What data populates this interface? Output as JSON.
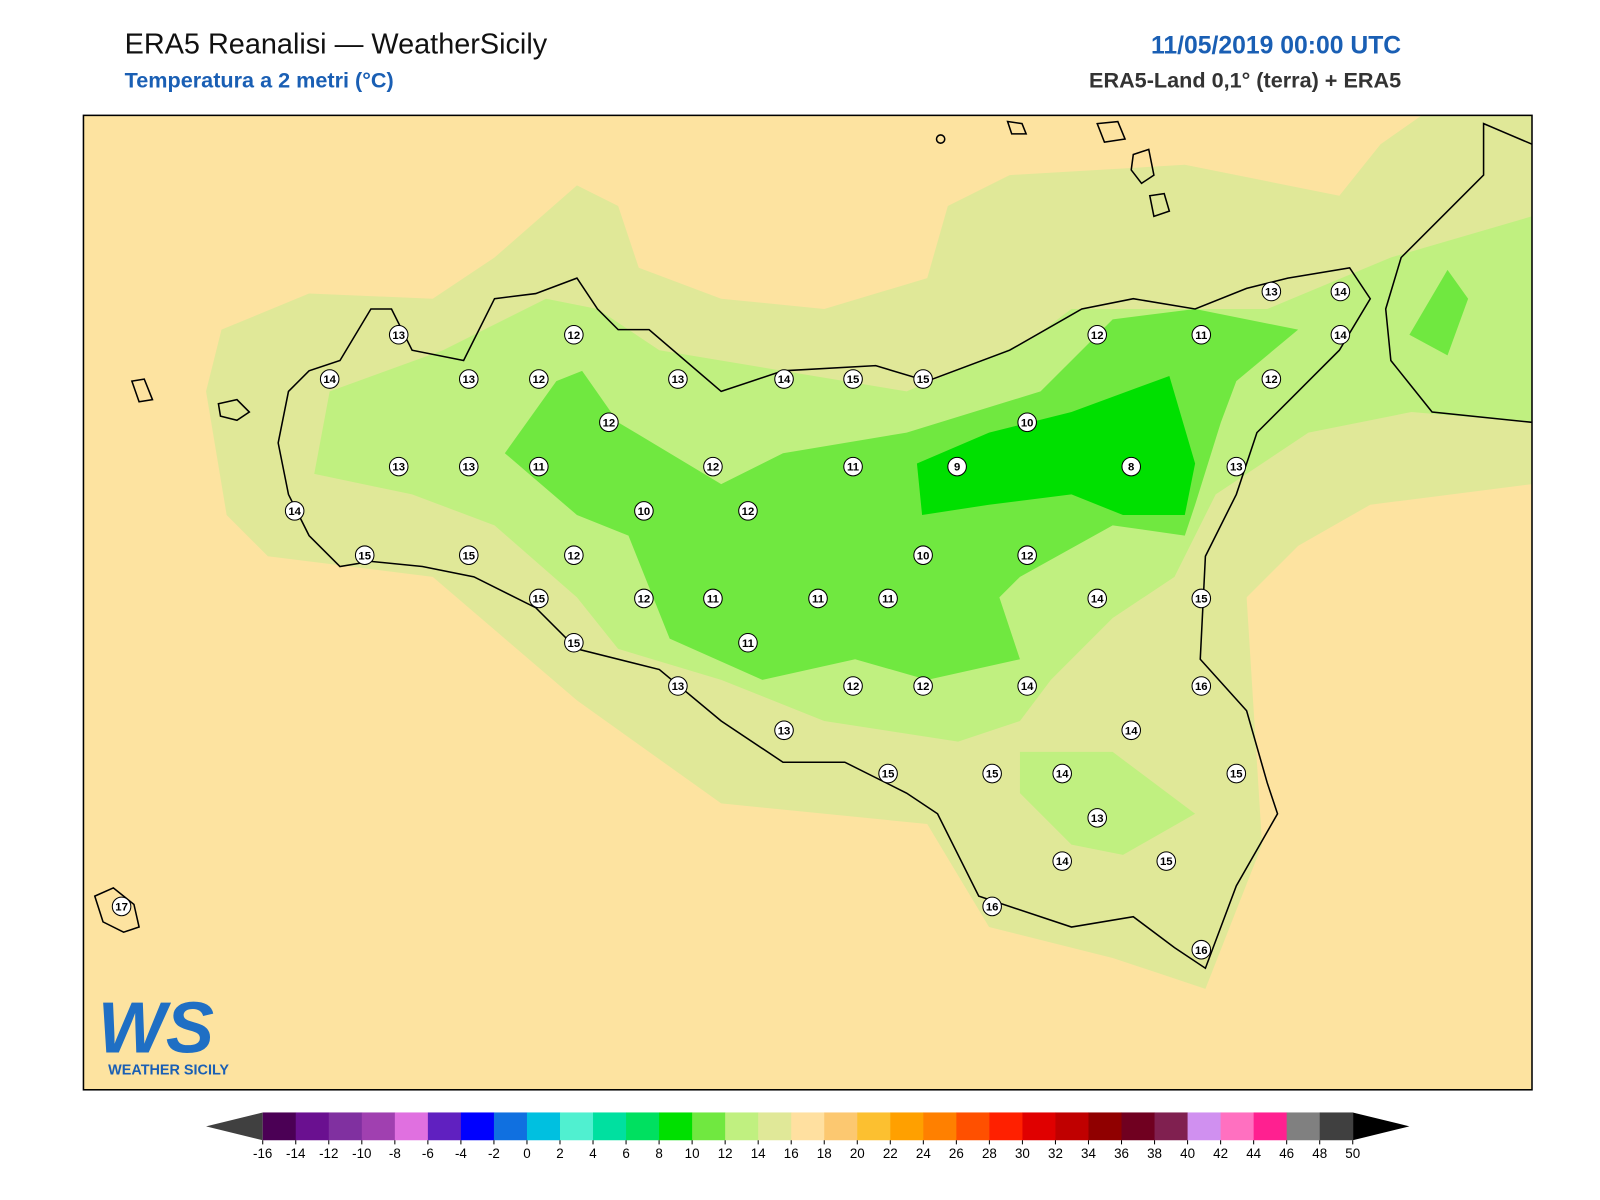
{
  "header": {
    "title": "ERA5 Reanalisi — WeatherSicily",
    "subtitle": "Temperatura a 2 metri (°C)",
    "date": "11/05/2019 00:00 UTC",
    "source": "ERA5-Land 0,1° (terra) + ERA5"
  },
  "stations": [
    13,
    12,
    14,
    13,
    12,
    13,
    14,
    15,
    15,
    12,
    13,
    13,
    11,
    12,
    11,
    9,
    10,
    8,
    12,
    11,
    13,
    14,
    14,
    12,
    13,
    14,
    10,
    12,
    15,
    15,
    12,
    10,
    12,
    15,
    12,
    11,
    11,
    11,
    14,
    15,
    15,
    11,
    13,
    12,
    12,
    14,
    16,
    13,
    14,
    15,
    15,
    14,
    15,
    13,
    14,
    15,
    17,
    16,
    16
  ],
  "logo": {
    "mark": "WS",
    "text": "WEATHER SICILY"
  },
  "colorbar": {
    "ticks": [
      -16,
      -14,
      -12,
      -10,
      -8,
      -6,
      -4,
      -2,
      0,
      2,
      4,
      6,
      8,
      10,
      12,
      14,
      16,
      18,
      20,
      22,
      24,
      26,
      28,
      30,
      32,
      34,
      36,
      38,
      40,
      42,
      44,
      46,
      48,
      50
    ],
    "colors": [
      "#4b0055",
      "#6a1090",
      "#8030a0",
      "#a040b0",
      "#e070e0",
      "#6020c0",
      "#0000ff",
      "#1070e0",
      "#00c0e0",
      "#50f0d0",
      "#00e0a0",
      "#00e060",
      "#00e000",
      "#70e840",
      "#c0f080",
      "#e0e898",
      "#ffe0a0",
      "#fcc870",
      "#fcc030",
      "#ffa000",
      "#ff8000",
      "#ff5000",
      "#ff2000",
      "#e00000",
      "#c00000",
      "#900000",
      "#700020",
      "#802050",
      "#d090f0",
      "#ff70c0",
      "#ff2090",
      "#808080",
      "#404040"
    ]
  }
}
